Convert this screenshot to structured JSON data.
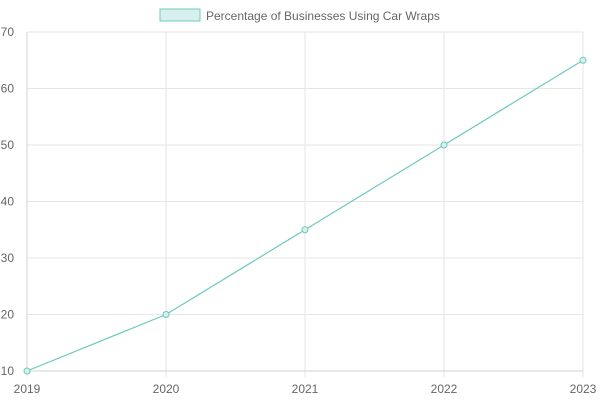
{
  "colors": {
    "series_line": "#6cc9bd",
    "series_fill": "#d7f0ed",
    "grid": "#e6e6e6",
    "tick_text": "#666666"
  },
  "chart_data": {
    "type": "line",
    "x": [
      "2019",
      "2020",
      "2021",
      "2022",
      "2023"
    ],
    "series": [
      {
        "name": "Percentage of Businesses Using Car Wraps",
        "values": [
          10,
          20,
          35,
          50,
          65
        ]
      }
    ],
    "ylim": [
      10,
      70
    ],
    "yticks": [
      10,
      20,
      30,
      40,
      50,
      60,
      70
    ],
    "xlabel": "",
    "ylabel": "",
    "grid": true,
    "legend": "top-center",
    "point_markers": "hollow-circle"
  }
}
